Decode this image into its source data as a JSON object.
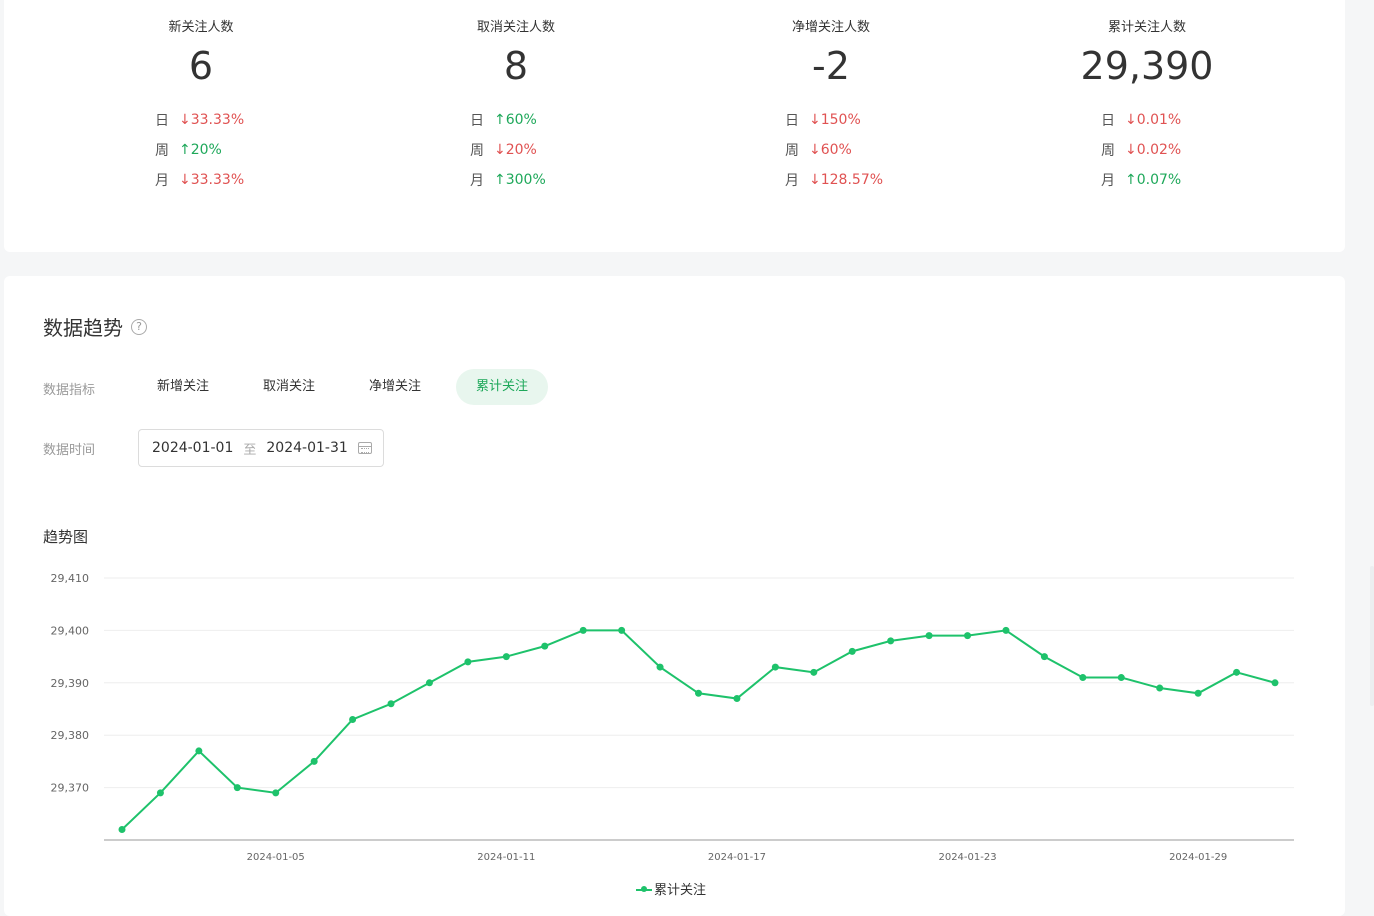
{
  "stats": [
    {
      "label": "新关注人数",
      "value": "6",
      "changes": [
        {
          "period": "日",
          "dir": "down",
          "value": "33.33%"
        },
        {
          "period": "周",
          "dir": "up",
          "value": "20%"
        },
        {
          "period": "月",
          "dir": "down",
          "value": "33.33%"
        }
      ]
    },
    {
      "label": "取消关注人数",
      "value": "8",
      "changes": [
        {
          "period": "日",
          "dir": "up",
          "value": "60%"
        },
        {
          "period": "周",
          "dir": "down",
          "value": "20%"
        },
        {
          "period": "月",
          "dir": "up",
          "value": "300%"
        }
      ]
    },
    {
      "label": "净增关注人数",
      "value": "-2",
      "changes": [
        {
          "period": "日",
          "dir": "down",
          "value": "150%"
        },
        {
          "period": "周",
          "dir": "down",
          "value": "60%"
        },
        {
          "period": "月",
          "dir": "down",
          "value": "128.57%"
        }
      ]
    },
    {
      "label": "累计关注人数",
      "value": "29,390",
      "changes": [
        {
          "period": "日",
          "dir": "down",
          "value": "0.01%"
        },
        {
          "period": "周",
          "dir": "down",
          "value": "0.02%"
        },
        {
          "period": "月",
          "dir": "up",
          "value": "0.07%"
        }
      ]
    }
  ],
  "trend": {
    "title": "数据趋势",
    "help_icon": "?",
    "metric_label": "数据指标",
    "tabs": [
      "新增关注",
      "取消关注",
      "净增关注",
      "累计关注"
    ],
    "active_tab": 3,
    "time_label": "数据时间",
    "date_start": "2024-01-01",
    "date_sep": "至",
    "date_end": "2024-01-31",
    "calendar_icon": "calendar-icon",
    "chart_title": "趋势图"
  },
  "colors": {
    "up": "#1ea85a",
    "down": "#e05252",
    "line": "#1ec26b"
  },
  "chart_data": {
    "type": "line",
    "title": "趋势图",
    "x": [
      "2024-01-01",
      "2024-01-02",
      "2024-01-03",
      "2024-01-04",
      "2024-01-05",
      "2024-01-06",
      "2024-01-07",
      "2024-01-08",
      "2024-01-09",
      "2024-01-10",
      "2024-01-11",
      "2024-01-12",
      "2024-01-13",
      "2024-01-14",
      "2024-01-15",
      "2024-01-16",
      "2024-01-17",
      "2024-01-18",
      "2024-01-19",
      "2024-01-20",
      "2024-01-21",
      "2024-01-22",
      "2024-01-23",
      "2024-01-24",
      "2024-01-25",
      "2024-01-26",
      "2024-01-27",
      "2024-01-28",
      "2024-01-29",
      "2024-01-30",
      "2024-01-31"
    ],
    "x_tick_labels": [
      "2024-01-05",
      "2024-01-11",
      "2024-01-17",
      "2024-01-23",
      "2024-01-29"
    ],
    "y_ticks": [
      29370,
      29380,
      29390,
      29400,
      29410
    ],
    "y_tick_labels": [
      "29,370",
      "29,380",
      "29,390",
      "29,400",
      "29,410"
    ],
    "ylim": [
      29360,
      29410
    ],
    "grid": true,
    "legend": "bottom-center",
    "series": [
      {
        "name": "累计关注",
        "values": [
          29362,
          29369,
          29377,
          29370,
          29369,
          29375,
          29383,
          29386,
          29390,
          29394,
          29395,
          29397,
          29400,
          29400,
          29393,
          29388,
          29387,
          29393,
          29392,
          29396,
          29398,
          29399,
          29399,
          29400,
          29395,
          29391,
          29391,
          29389,
          29388,
          29392,
          29390
        ]
      }
    ]
  }
}
